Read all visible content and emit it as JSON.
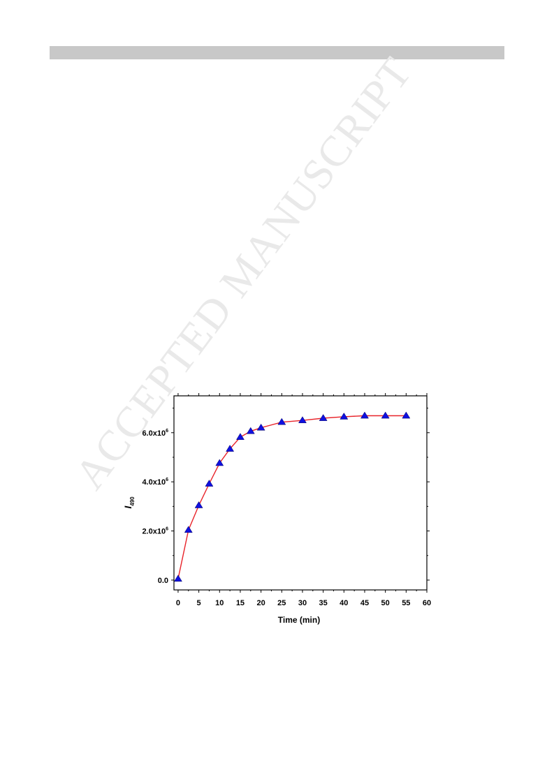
{
  "watermark": {
    "text": "ACCEPTED MANUSCRIPT"
  },
  "colors": {
    "line": "#e8232a",
    "marker": "#1010e0",
    "header_bar": "#c8c8c8",
    "watermark": "#e9e9e9"
  },
  "chart_data": {
    "type": "line",
    "title": "",
    "xlabel": "Time (min)",
    "ylabel": {
      "main": "I",
      "sub": "490"
    },
    "xlim": [
      -1,
      60
    ],
    "ylim": [
      -400000,
      7500000
    ],
    "xticks": [
      0,
      5,
      10,
      15,
      20,
      25,
      30,
      35,
      40,
      45,
      50,
      55,
      60
    ],
    "yticks": [
      {
        "value": 0,
        "mantissa": "0.0",
        "exp": ""
      },
      {
        "value": 2000000,
        "mantissa": "2.0x10",
        "exp": "6"
      },
      {
        "value": 4000000,
        "mantissa": "4.0x10",
        "exp": "6"
      },
      {
        "value": 6000000,
        "mantissa": "6.0x10",
        "exp": "6"
      }
    ],
    "grid": false,
    "legend": "none",
    "series": [
      {
        "marker": "triangle",
        "x": [
          0,
          2.5,
          5,
          7.5,
          10,
          12.5,
          15,
          17.5,
          20,
          25,
          30,
          35,
          40,
          45,
          50,
          55
        ],
        "y": [
          50000,
          2040000,
          3040000,
          3920000,
          4760000,
          5340000,
          5820000,
          6060000,
          6200000,
          6430000,
          6500000,
          6590000,
          6650000,
          6690000,
          6690000,
          6690000
        ]
      }
    ]
  }
}
